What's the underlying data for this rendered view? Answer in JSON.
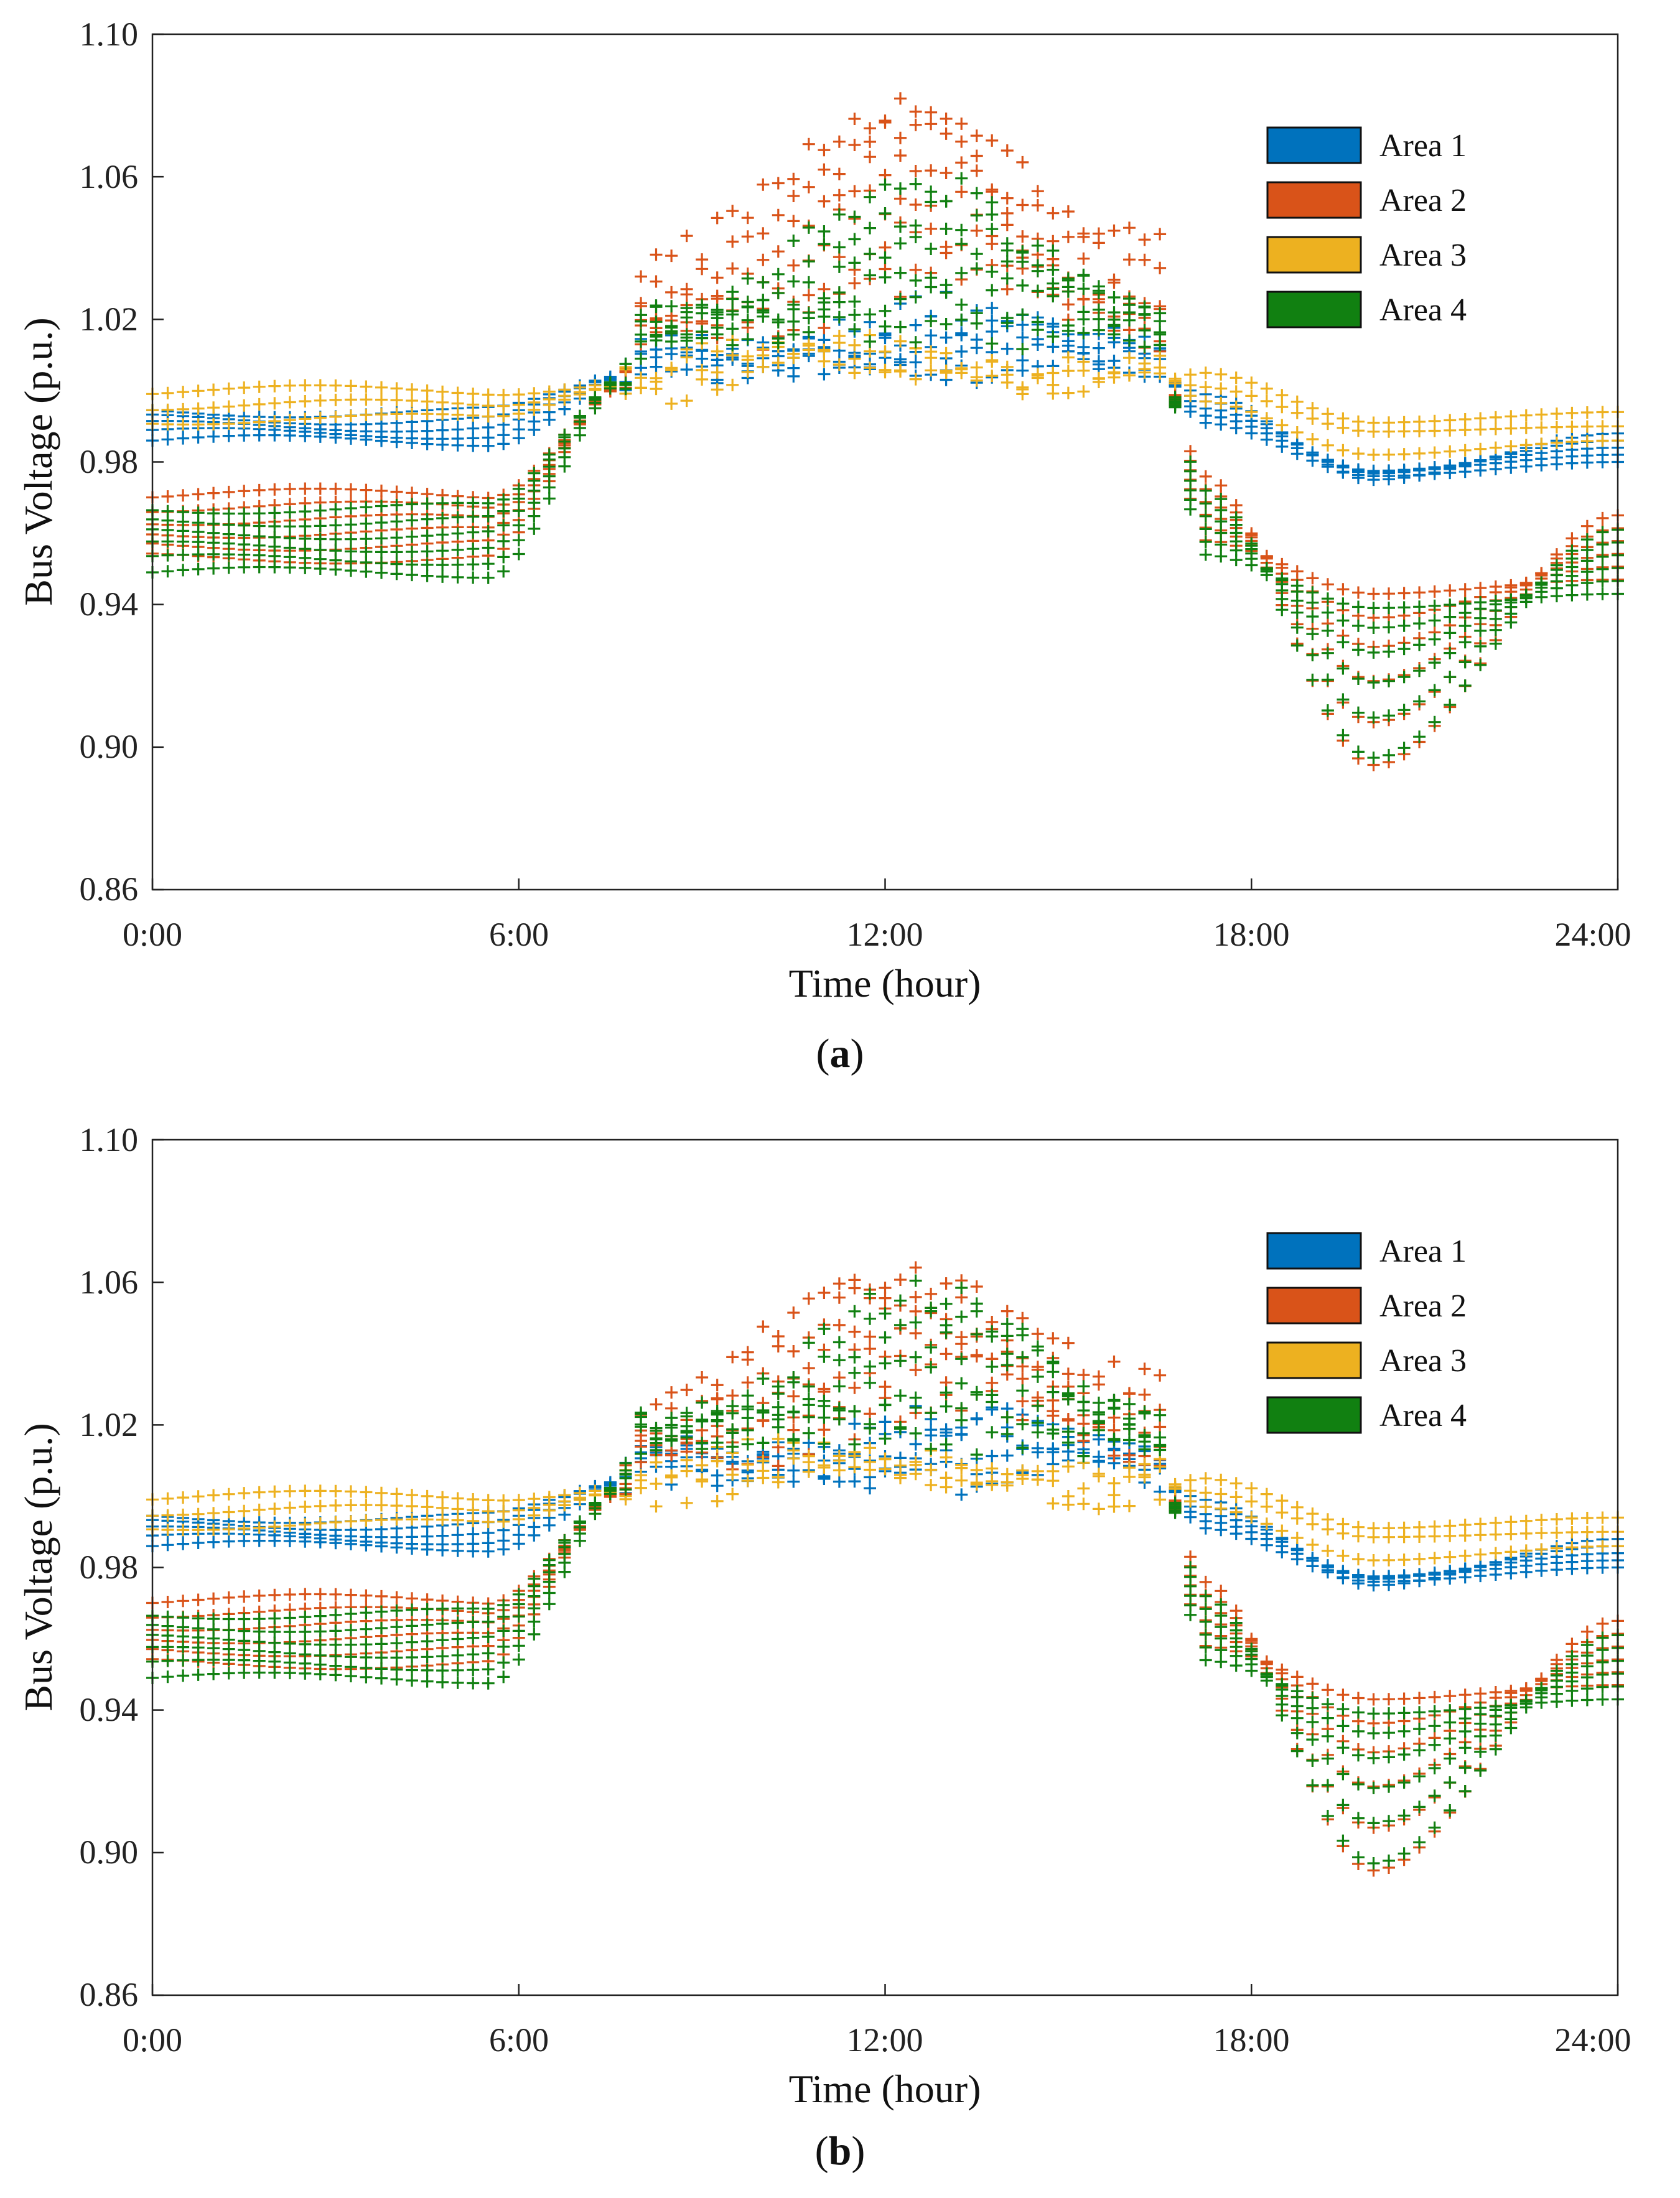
{
  "chart_data": [
    {
      "type": "scatter",
      "panel_label": "a",
      "xlabel": "Time (hour)",
      "ylabel": "Bus Voltage (p.u.)",
      "xlim": [
        0,
        24
      ],
      "ylim": [
        0.86,
        1.1
      ],
      "xticks": [
        0,
        6,
        12,
        18,
        24
      ],
      "xtick_labels": [
        "0:00",
        "6:00",
        "12:00",
        "18:00",
        "24:00"
      ],
      "yticks": [
        0.86,
        0.9,
        0.94,
        0.98,
        1.02,
        1.06,
        1.1
      ],
      "ytick_labels": [
        "0.86",
        "0.90",
        "0.94",
        "0.98",
        "1.02",
        "1.06",
        "1.10"
      ],
      "grid": false,
      "legend_position": "top-right",
      "marker": "+",
      "series": [
        {
          "name": "Area 1",
          "color": "#0072BD",
          "night_level": 0.99,
          "noon_high": 1.018,
          "evening_min": 0.975,
          "bus_count": 5
        },
        {
          "name": "Area 2",
          "color": "#D95319",
          "night_level": 0.962,
          "noon_high": 1.08,
          "evening_min": 0.895,
          "bus_count": 6
        },
        {
          "name": "Area 3",
          "color": "#EDB120",
          "night_level": 0.996,
          "noon_high": 1.008,
          "evening_min": 0.991,
          "bus_count": 3
        },
        {
          "name": "Area 4",
          "color": "#118011",
          "night_level": 0.958,
          "noon_high": 1.052,
          "evening_min": 0.897,
          "bus_count": 6
        }
      ]
    },
    {
      "type": "scatter",
      "panel_label": "b",
      "xlabel": "Time (hour)",
      "ylabel": "Bus Voltage (p.u.)",
      "xlim": [
        0,
        24
      ],
      "ylim": [
        0.86,
        1.1
      ],
      "xticks": [
        0,
        6,
        12,
        18,
        24
      ],
      "xtick_labels": [
        "0:00",
        "6:00",
        "12:00",
        "18:00",
        "24:00"
      ],
      "yticks": [
        0.86,
        0.9,
        0.94,
        0.98,
        1.02,
        1.06,
        1.1
      ],
      "ytick_labels": [
        "0.86",
        "0.90",
        "0.94",
        "0.98",
        "1.02",
        "1.06",
        "1.10"
      ],
      "grid": false,
      "legend_position": "top-right",
      "marker": "+",
      "series": [
        {
          "name": "Area 1",
          "color": "#0072BD",
          "night_level": 0.99,
          "noon_high": 1.018,
          "evening_min": 0.975,
          "bus_count": 5
        },
        {
          "name": "Area 2",
          "color": "#D95319",
          "night_level": 0.962,
          "noon_high": 1.062,
          "evening_min": 0.895,
          "bus_count": 6
        },
        {
          "name": "Area 3",
          "color": "#EDB120",
          "night_level": 0.996,
          "noon_high": 1.008,
          "evening_min": 0.991,
          "bus_count": 3
        },
        {
          "name": "Area 4",
          "color": "#118011",
          "night_level": 0.958,
          "noon_high": 1.052,
          "evening_min": 0.897,
          "bus_count": 6
        }
      ]
    }
  ]
}
